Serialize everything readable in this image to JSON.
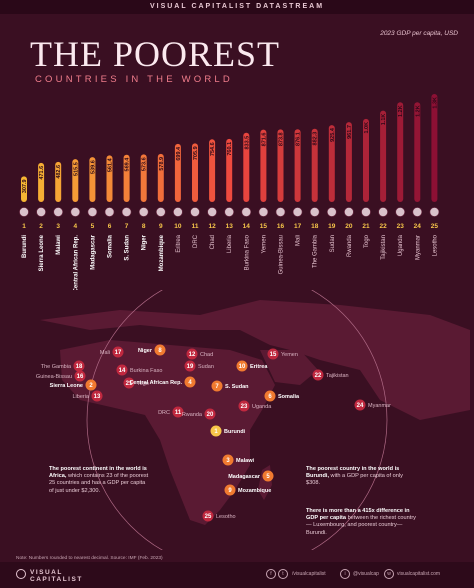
{
  "header": {
    "source": "VISUAL CAPITALIST DATASTREAM"
  },
  "gdp_note": "2023 GDP per capita, USD",
  "title": "THE POOREST",
  "subtitle": "COUNTRIES IN THE WORLD",
  "chart_data": {
    "type": "bar",
    "ylabel": "2023 GDP per capita, USD",
    "categories": [
      "Burundi",
      "Sierra Leone",
      "Malawi",
      "Central African Rep.",
      "Madagascar",
      "Somalia",
      "S. Sudan",
      "Niger",
      "Mozambique",
      "Eritrea",
      "DRC",
      "Chad",
      "Liberia",
      "Burkina Faso",
      "Yemen",
      "Guinea-Bissau",
      "Mali",
      "The Gambia",
      "Sudan",
      "Rwanda",
      "Togo",
      "Tajikistan",
      "Uganda",
      "Myanmar",
      "Lesotho"
    ],
    "ranks": [
      "1",
      "2",
      "3",
      "4",
      "5",
      "6",
      "7",
      "8",
      "9",
      "10",
      "11",
      "12",
      "13",
      "14",
      "15",
      "16",
      "17",
      "18",
      "19",
      "20",
      "21",
      "22",
      "23",
      "24",
      "25"
    ],
    "values": [
      307.9,
      471.6,
      482.6,
      515.5,
      539.6,
      561.4,
      569.4,
      573.6,
      578.9,
      699.4,
      705.9,
      754.6,
      760.1,
      833.5,
      871.6,
      873.8,
      876.1,
      882.3,
      925.4,
      961.7,
      1000,
      1100,
      1200,
      1200,
      1300
    ],
    "value_labels": [
      "307.9",
      "471.6",
      "482.6",
      "515.5",
      "539.6",
      "561.4",
      "569.4",
      "573.6",
      "578.9",
      "699.4",
      "705.9",
      "754.6",
      "760.1",
      "833.5",
      "871.6",
      "873.8",
      "876.1",
      "882.3",
      "925.4",
      "961.7",
      "1.0K",
      "1.1K",
      "1.2K",
      "1.2K",
      "1.3K"
    ],
    "ylim": [
      0,
      1300
    ]
  },
  "map": {
    "labels": [
      {
        "rank": "17",
        "name": "Mali"
      },
      {
        "rank": "8",
        "name": "Niger"
      },
      {
        "rank": "12",
        "name": "Chad"
      },
      {
        "rank": "10",
        "name": "Eritrea"
      },
      {
        "rank": "15",
        "name": "Yemen"
      },
      {
        "rank": "18",
        "name": "The Gambia"
      },
      {
        "rank": "16",
        "name": "Guinea-Bissau"
      },
      {
        "rank": "14",
        "name": "Burkina Faso"
      },
      {
        "rank": "19",
        "name": "Sudan"
      },
      {
        "rank": "2",
        "name": "Sierra Leone"
      },
      {
        "rank": "21",
        "name": "Togo"
      },
      {
        "rank": "13",
        "name": "Liberia"
      },
      {
        "rank": "4",
        "name": "Central African Rep."
      },
      {
        "rank": "7",
        "name": "S. Sudan"
      },
      {
        "rank": "6",
        "name": "Somalia"
      },
      {
        "rank": "11",
        "name": "DRC"
      },
      {
        "rank": "20",
        "name": "Rwanda"
      },
      {
        "rank": "23",
        "name": "Uganda"
      },
      {
        "rank": "1",
        "name": "Burundi"
      },
      {
        "rank": "22",
        "name": "Tajikistan"
      },
      {
        "rank": "24",
        "name": "Myanmar"
      },
      {
        "rank": "3",
        "name": "Malawi"
      },
      {
        "rank": "5",
        "name": "Madagascar"
      },
      {
        "rank": "9",
        "name": "Mozambique"
      },
      {
        "rank": "25",
        "name": "Lesotho"
      }
    ]
  },
  "notes": {
    "left_bold": "The poorest continent in the world is Africa,",
    "left_rest": " which contains 23 of the poorest 25 countries and has a GDP per capita of just under $2,300.",
    "right_bold": "The poorest country in the world is Burundi,",
    "right_rest": " with a GDP per capita of only $308.",
    "right2_bold": "There is more than a 415x difference in GDP per capita",
    "right2_rest": " between the richest country— Luxembourg, and poorest country— Burundi."
  },
  "footnote": "Note: Numbers rounded to nearest decimal. Source: IMF (Feb. 2023)",
  "footer": {
    "brand_line1": "VISUAL",
    "brand_line2": "CAPITALIST",
    "handle1": "/visualcapitalist",
    "handle2": "@visualcap",
    "handle3": "visualcapitalist.com"
  },
  "colors": {
    "background": "#3a0f22",
    "bar_low": "#f7b733",
    "bar_mid": "#ef4a3f",
    "bar_high": "#8c1034"
  }
}
